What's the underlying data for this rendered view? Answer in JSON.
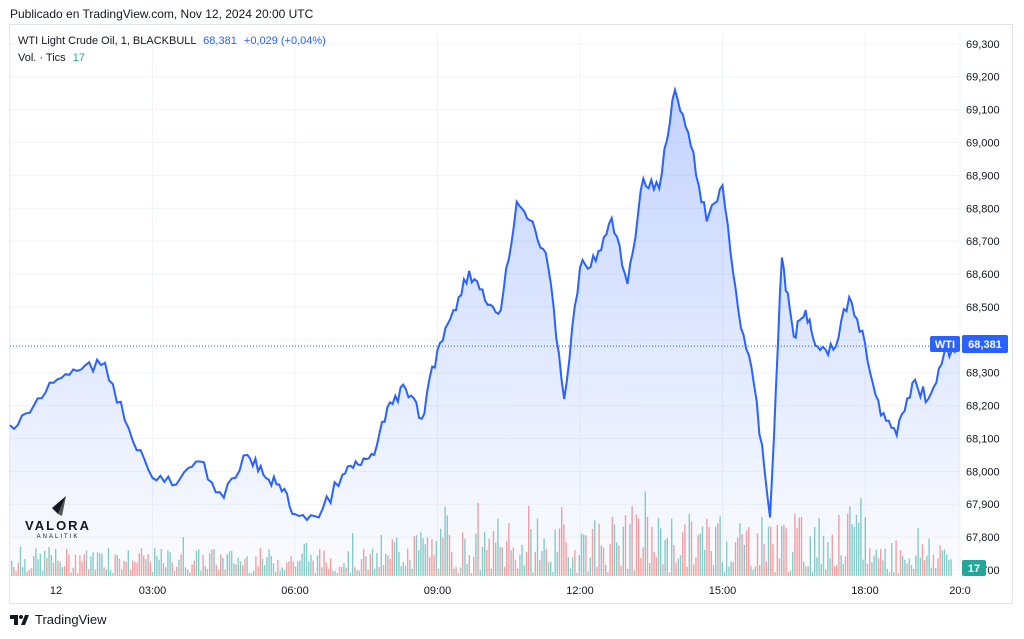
{
  "published_line": "Publicado en TradingView.com, Nov 12, 2024 20:00 UTC",
  "legend": {
    "symbol": "WTI Light Crude Oil, 1, BLACKBULL",
    "price": "68,381",
    "change": "+0,029 (+0,04%)",
    "volume_label": "Vol. · Tics",
    "volume_value": "17"
  },
  "price_tag": {
    "symbol": "WTI",
    "value": "68,381"
  },
  "volume_tag": "17",
  "brand": {
    "name": "VALORA",
    "sub": "ANALITIK"
  },
  "footer": "TradingView",
  "colors": {
    "line": "#2962ff",
    "up": "#26a69a",
    "down": "#ef5350",
    "grid": "#f0f3fa"
  },
  "chart_data": {
    "type": "area",
    "series": [
      {
        "x": [
          "00:00",
          "00:30",
          "01:00",
          "01:30",
          "02:00",
          "02:30",
          "03:00",
          "03:30",
          "04:00",
          "04:30",
          "05:00",
          "05:20",
          "05:40",
          "06:00",
          "06:30",
          "07:00",
          "07:20",
          "07:40",
          "08:00",
          "08:20",
          "08:40",
          "09:00",
          "09:20",
          "09:40",
          "10:00",
          "10:20",
          "10:40",
          "11:00",
          "11:20",
          "11:40",
          "12:00",
          "12:20",
          "12:40",
          "13:00",
          "13:20",
          "13:40",
          "14:00",
          "14:20",
          "14:40",
          "15:00",
          "15:20",
          "15:40",
          "16:00",
          "16:15",
          "16:30",
          "16:45",
          "17:00",
          "17:20",
          "17:40",
          "18:00",
          "18:20",
          "18:40",
          "19:00",
          "19:20",
          "19:40",
          "20:00"
        ],
        "values": [
          68.14,
          68.2,
          68.28,
          68.31,
          68.33,
          68.13,
          67.98,
          67.96,
          68.03,
          67.92,
          68.05,
          67.99,
          67.96,
          67.87,
          67.86,
          67.99,
          68.02,
          68.05,
          68.21,
          68.25,
          68.16,
          68.37,
          68.49,
          68.61,
          68.52,
          68.49,
          68.82,
          68.76,
          68.62,
          68.22,
          68.62,
          68.64,
          68.77,
          68.57,
          68.89,
          68.86,
          69.16,
          68.99,
          68.76,
          68.87,
          68.49,
          68.26,
          67.86,
          68.65,
          68.41,
          68.49,
          68.38,
          68.37,
          68.53,
          68.39,
          68.17,
          68.11,
          68.27,
          68.22,
          68.36,
          68.381
        ]
      }
    ],
    "ylim": [
      67.7,
      69.33
    ],
    "yticks": [
      "69,300",
      "69,200",
      "69,100",
      "69,000",
      "68,900",
      "68,800",
      "68,700",
      "68,600",
      "68,500",
      "68,400",
      "68,300",
      "68,200",
      "68,100",
      "68,000",
      "67,900",
      "67,800",
      "67,700"
    ],
    "xticks": [
      "12",
      "03:00",
      "06:00",
      "09:00",
      "12:00",
      "15:00",
      "18:00",
      "20:0"
    ],
    "grid": true
  }
}
